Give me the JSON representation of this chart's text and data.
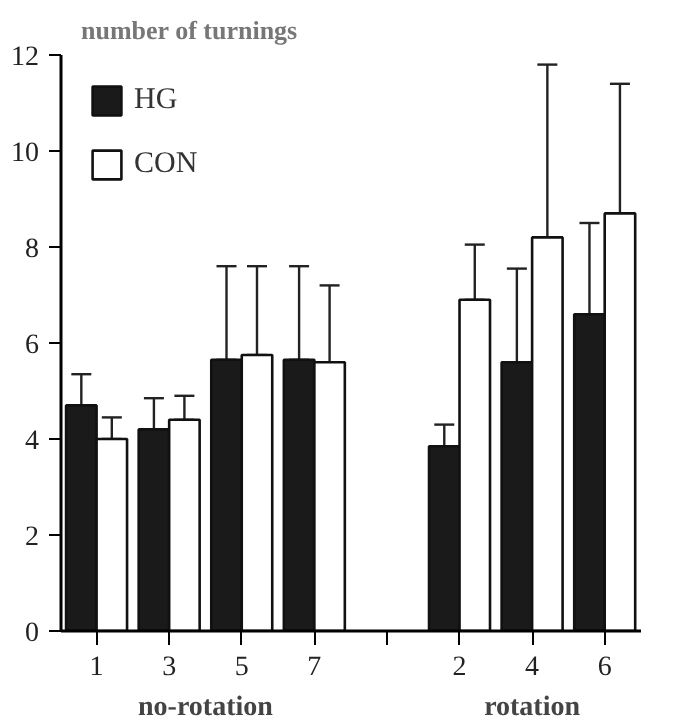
{
  "chart_data": {
    "type": "bar",
    "ylabel": "number of turnings",
    "categories": [
      "1",
      "3",
      "5",
      "7",
      null,
      "2",
      "4",
      "6"
    ],
    "annotations": [
      "no-rotation",
      "rotation"
    ],
    "series": [
      {
        "name": "HG",
        "color": "#1a1a1a",
        "values": [
          4.7,
          4.2,
          5.65,
          5.65,
          null,
          3.85,
          5.6,
          6.6
        ],
        "errors": [
          [
            4.7,
            5.35
          ],
          [
            4.2,
            4.85
          ],
          [
            5.65,
            7.6
          ],
          [
            5.65,
            7.6
          ],
          null,
          [
            3.85,
            4.3
          ],
          [
            5.6,
            7.55
          ],
          [
            6.6,
            8.5
          ]
        ]
      },
      {
        "name": "CON",
        "color": "#ffffff",
        "values": [
          4.0,
          4.4,
          5.75,
          5.6,
          null,
          6.9,
          8.2,
          8.7
        ],
        "errors": [
          [
            4.0,
            4.45
          ],
          [
            4.4,
            4.9
          ],
          [
            5.75,
            7.6
          ],
          [
            5.6,
            7.2
          ],
          null,
          [
            6.9,
            8.05
          ],
          [
            8.2,
            11.8
          ],
          [
            8.7,
            11.4
          ]
        ]
      }
    ],
    "ylim": [
      0,
      12
    ],
    "yticks": [
      0,
      2,
      4,
      6,
      8,
      10,
      12
    ],
    "grid": false,
    "legend": "top left"
  }
}
